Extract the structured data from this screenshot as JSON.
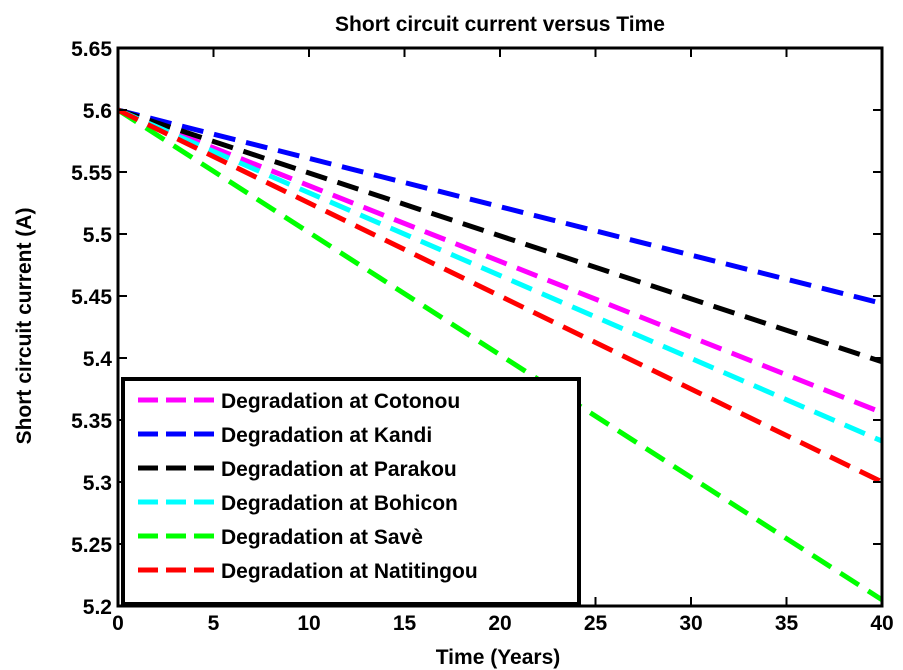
{
  "chart_data": {
    "type": "line",
    "title": "Short circuit current versus Time",
    "xlabel": "Time (Years)",
    "ylabel": "Short circuit current (A)",
    "xlim": [
      0,
      40
    ],
    "ylim": [
      5.2,
      5.65
    ],
    "xticks": [
      0,
      5,
      10,
      15,
      20,
      25,
      30,
      35,
      40
    ],
    "xtick_labels": [
      "0",
      "5",
      "10",
      "15",
      "20",
      "25",
      "30",
      "35",
      "40"
    ],
    "yticks": [
      5.2,
      5.25,
      5.3,
      5.35,
      5.4,
      5.45,
      5.5,
      5.55,
      5.6,
      5.65
    ],
    "ytick_labels": [
      "5.2",
      "5.25",
      "5.3",
      "5.35",
      "5.4",
      "5.45",
      "5.5",
      "5.55",
      "5.6",
      "5.65"
    ],
    "grid": false,
    "legend_position": "bottom-left",
    "line_style": "dashed",
    "x": [
      0,
      40
    ],
    "series": [
      {
        "name": "Degradation at Cotonou",
        "color": "#ff00ff",
        "values": [
          5.6,
          5.356
        ]
      },
      {
        "name": "Degradation at Kandi",
        "color": "#0000ff",
        "values": [
          5.6,
          5.444
        ]
      },
      {
        "name": "Degradation at Parakou",
        "color": "#000000",
        "values": [
          5.6,
          5.397
        ]
      },
      {
        "name": "Degradation at Bohicon",
        "color": "#00ffff",
        "values": [
          5.6,
          5.333
        ]
      },
      {
        "name": "Degradation at Savè",
        "color": "#00ff00",
        "values": [
          5.6,
          5.205
        ]
      },
      {
        "name": "Degradation at Natitingou",
        "color": "#ff0000",
        "values": [
          5.6,
          5.3
        ]
      }
    ]
  }
}
